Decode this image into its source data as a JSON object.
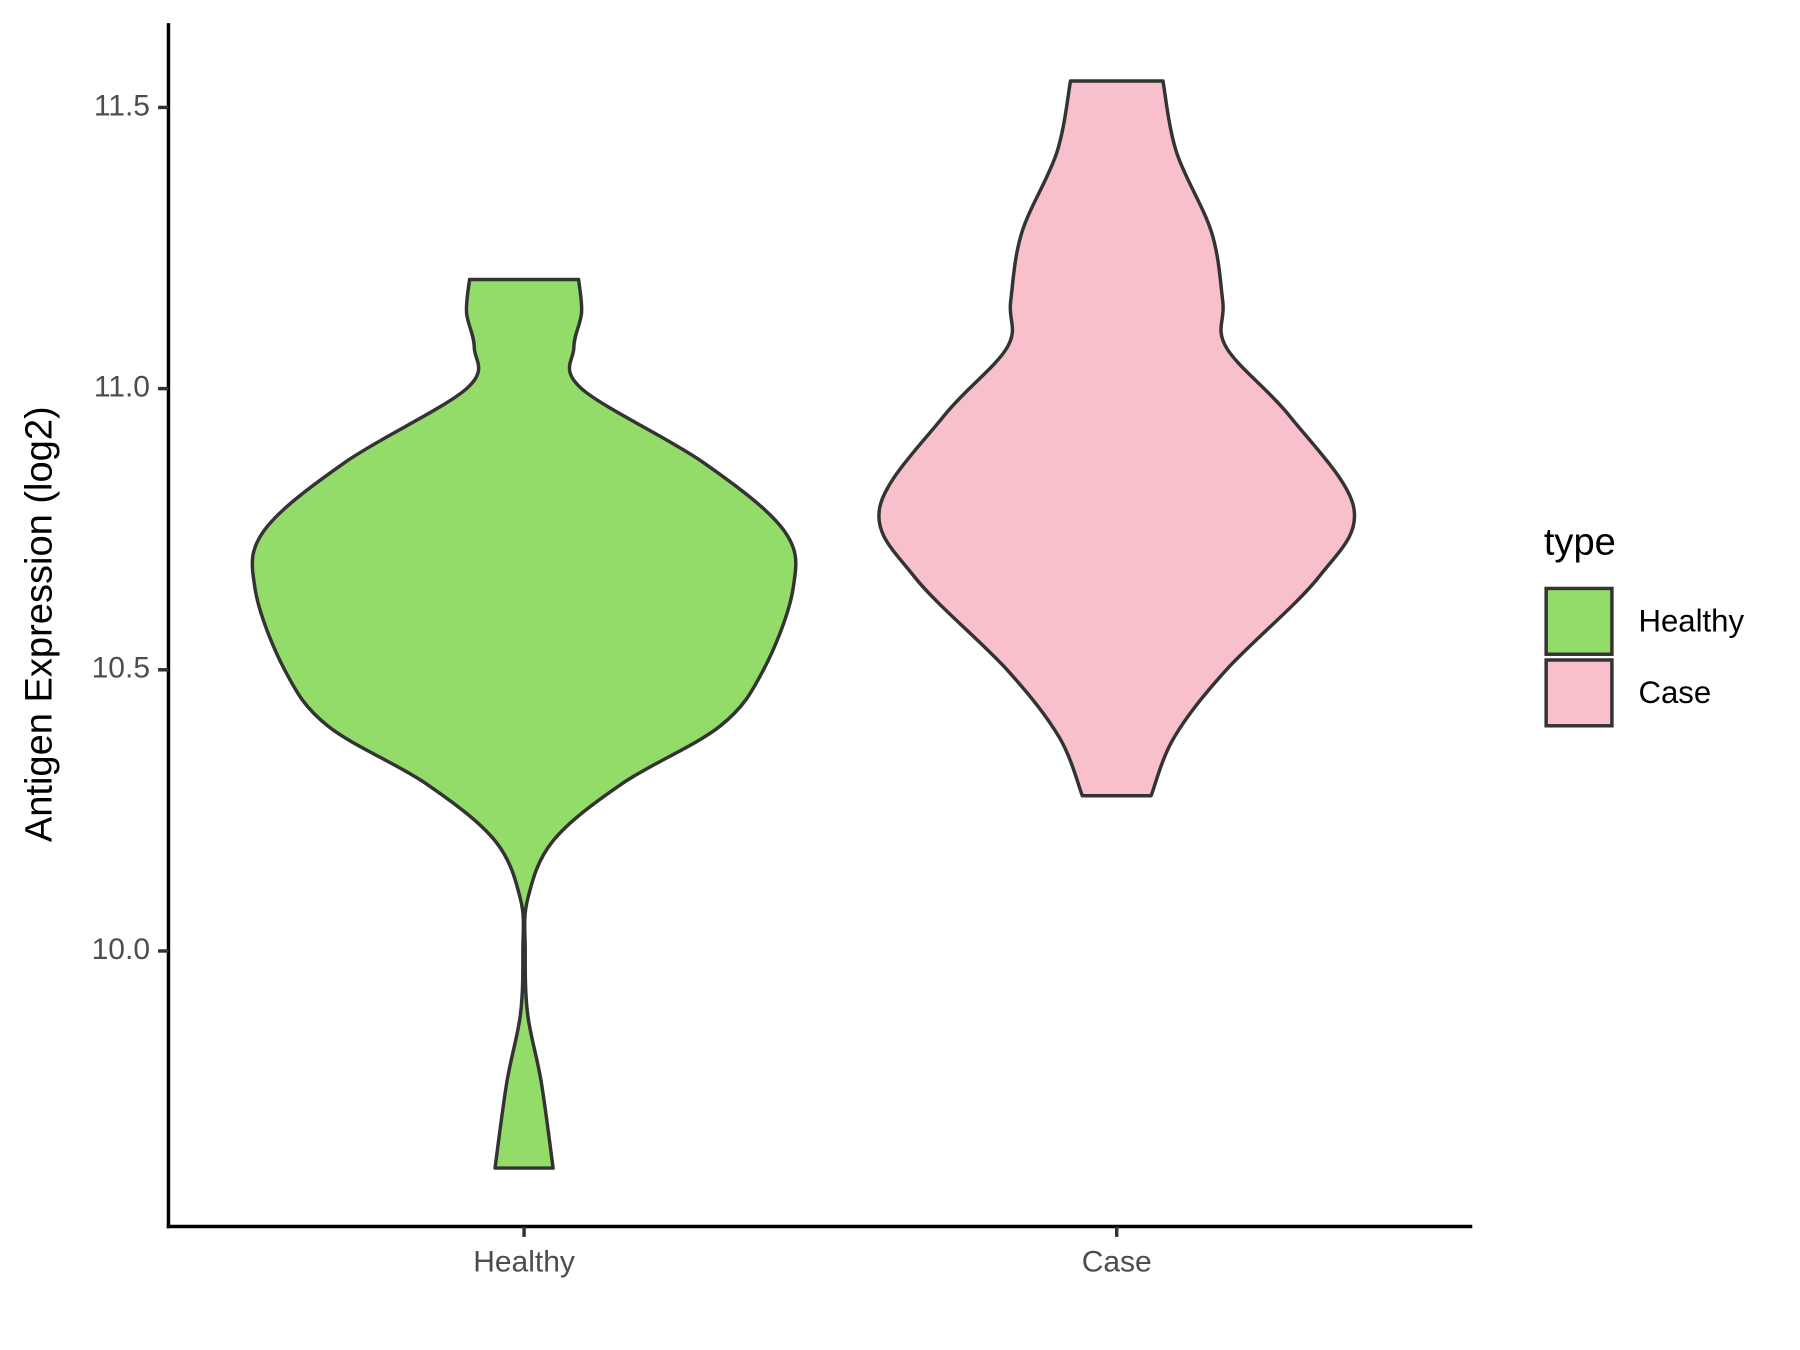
{
  "chart_data": {
    "type": "violin",
    "y_label": "Antigen Expression (log2)",
    "categories": [
      "Healthy",
      "Case"
    ],
    "legend_title": "type",
    "legend_position": "right",
    "ylim": [
      9.51,
      11.65
    ],
    "yticks": [
      {
        "value": 10.0,
        "label": "10.0"
      },
      10.5,
      {
        "value": 11.0,
        "label": "11.0"
      },
      11.5
    ],
    "series": [
      {
        "name": "Healthy",
        "color": "#94dc6a",
        "y": [
          11.194,
          11.135,
          11.073,
          11.0,
          10.869,
          10.747,
          10.645,
          10.5,
          10.4,
          10.298,
          10.196,
          10.092,
          10.0,
          9.888,
          9.767,
          9.614
        ],
        "half_width": [
          0.092,
          0.097,
          0.084,
          0.097,
          0.302,
          0.439,
          0.454,
          0.404,
          0.331,
          0.166,
          0.049,
          0.006,
          0.002,
          0.006,
          0.029,
          0.049
        ]
      },
      {
        "name": "Case",
        "color": "#f7c0cb",
        "y": [
          11.547,
          11.42,
          11.278,
          11.155,
          11.073,
          10.951,
          10.788,
          10.665,
          10.5,
          10.38,
          10.276
        ],
        "half_width": [
          0.078,
          0.101,
          0.16,
          0.179,
          0.185,
          0.292,
          0.4,
          0.341,
          0.185,
          0.097,
          0.058
        ]
      }
    ]
  }
}
